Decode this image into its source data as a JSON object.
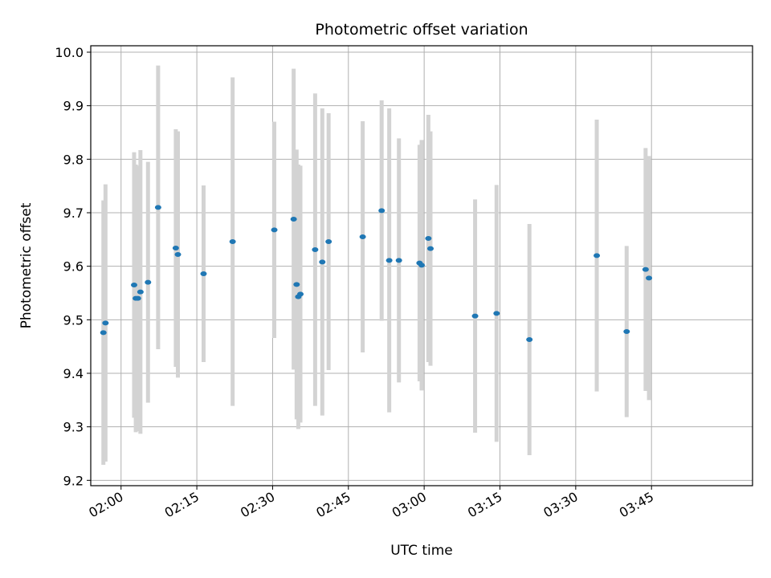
{
  "chart_data": {
    "type": "scatter",
    "title": "Photometric offset variation",
    "xlabel": "UTC time",
    "ylabel": "Photometric offset",
    "xlim": [
      "01:54",
      "04:05"
    ],
    "ylim": [
      9.19,
      10.012
    ],
    "x_ticks": [
      "02:00",
      "02:15",
      "02:30",
      "02:45",
      "03:00",
      "03:15",
      "03:30",
      "03:45"
    ],
    "y_ticks": [
      9.2,
      9.3,
      9.4,
      9.5,
      9.6,
      9.7,
      9.8,
      9.9,
      10.0
    ],
    "grid": true,
    "colors": {
      "points": "#1f77b4",
      "errorbars": "#d3d3d3",
      "grid": "#b0b0b0"
    },
    "points": [
      {
        "x": "01:56:30",
        "y": 9.476,
        "err": 0.247
      },
      {
        "x": "01:56:55",
        "y": 9.494,
        "err": 0.259
      },
      {
        "x": "02:02:35",
        "y": 9.565,
        "err": 0.248
      },
      {
        "x": "02:02:55",
        "y": 9.54,
        "err": 0.25
      },
      {
        "x": "02:03:20",
        "y": 9.54,
        "err": 0.248
      },
      {
        "x": "02:03:50",
        "y": 9.552,
        "err": 0.265
      },
      {
        "x": "02:05:20",
        "y": 9.57,
        "err": 0.225
      },
      {
        "x": "02:07:20",
        "y": 9.71,
        "err": 0.265
      },
      {
        "x": "02:10:50",
        "y": 9.634,
        "err": 0.222
      },
      {
        "x": "02:11:15",
        "y": 9.622,
        "err": 0.23
      },
      {
        "x": "02:16:20",
        "y": 9.586,
        "err": 0.165
      },
      {
        "x": "02:22:05",
        "y": 9.646,
        "err": 0.307
      },
      {
        "x": "02:30:20",
        "y": 9.668,
        "err": 0.202
      },
      {
        "x": "02:34:10",
        "y": 9.688,
        "err": 0.281
      },
      {
        "x": "02:34:45",
        "y": 9.566,
        "err": 0.252
      },
      {
        "x": "02:35:05",
        "y": 9.543,
        "err": 0.247
      },
      {
        "x": "02:35:30",
        "y": 9.548,
        "err": 0.24
      },
      {
        "x": "02:38:25",
        "y": 9.631,
        "err": 0.292
      },
      {
        "x": "02:39:50",
        "y": 9.608,
        "err": 0.287
      },
      {
        "x": "02:41:05",
        "y": 9.646,
        "err": 0.24
      },
      {
        "x": "02:47:50",
        "y": 9.655,
        "err": 0.216
      },
      {
        "x": "02:51:35",
        "y": 9.704,
        "err": 0.206
      },
      {
        "x": "02:53:05",
        "y": 9.611,
        "err": 0.284
      },
      {
        "x": "02:55:00",
        "y": 9.611,
        "err": 0.228
      },
      {
        "x": "02:59:05",
        "y": 9.606,
        "err": 0.221
      },
      {
        "x": "02:59:30",
        "y": 9.602,
        "err": 0.234
      },
      {
        "x": "03:00:50",
        "y": 9.652,
        "err": 0.231
      },
      {
        "x": "03:01:15",
        "y": 9.633,
        "err": 0.219
      },
      {
        "x": "03:10:05",
        "y": 9.507,
        "err": 0.218
      },
      {
        "x": "03:14:20",
        "y": 9.512,
        "err": 0.24
      },
      {
        "x": "03:20:50",
        "y": 9.463,
        "err": 0.216
      },
      {
        "x": "03:34:10",
        "y": 9.62,
        "err": 0.254
      },
      {
        "x": "03:40:05",
        "y": 9.478,
        "err": 0.16
      },
      {
        "x": "03:43:50",
        "y": 9.594,
        "err": 0.227
      },
      {
        "x": "03:44:30",
        "y": 9.578,
        "err": 0.228
      }
    ]
  }
}
